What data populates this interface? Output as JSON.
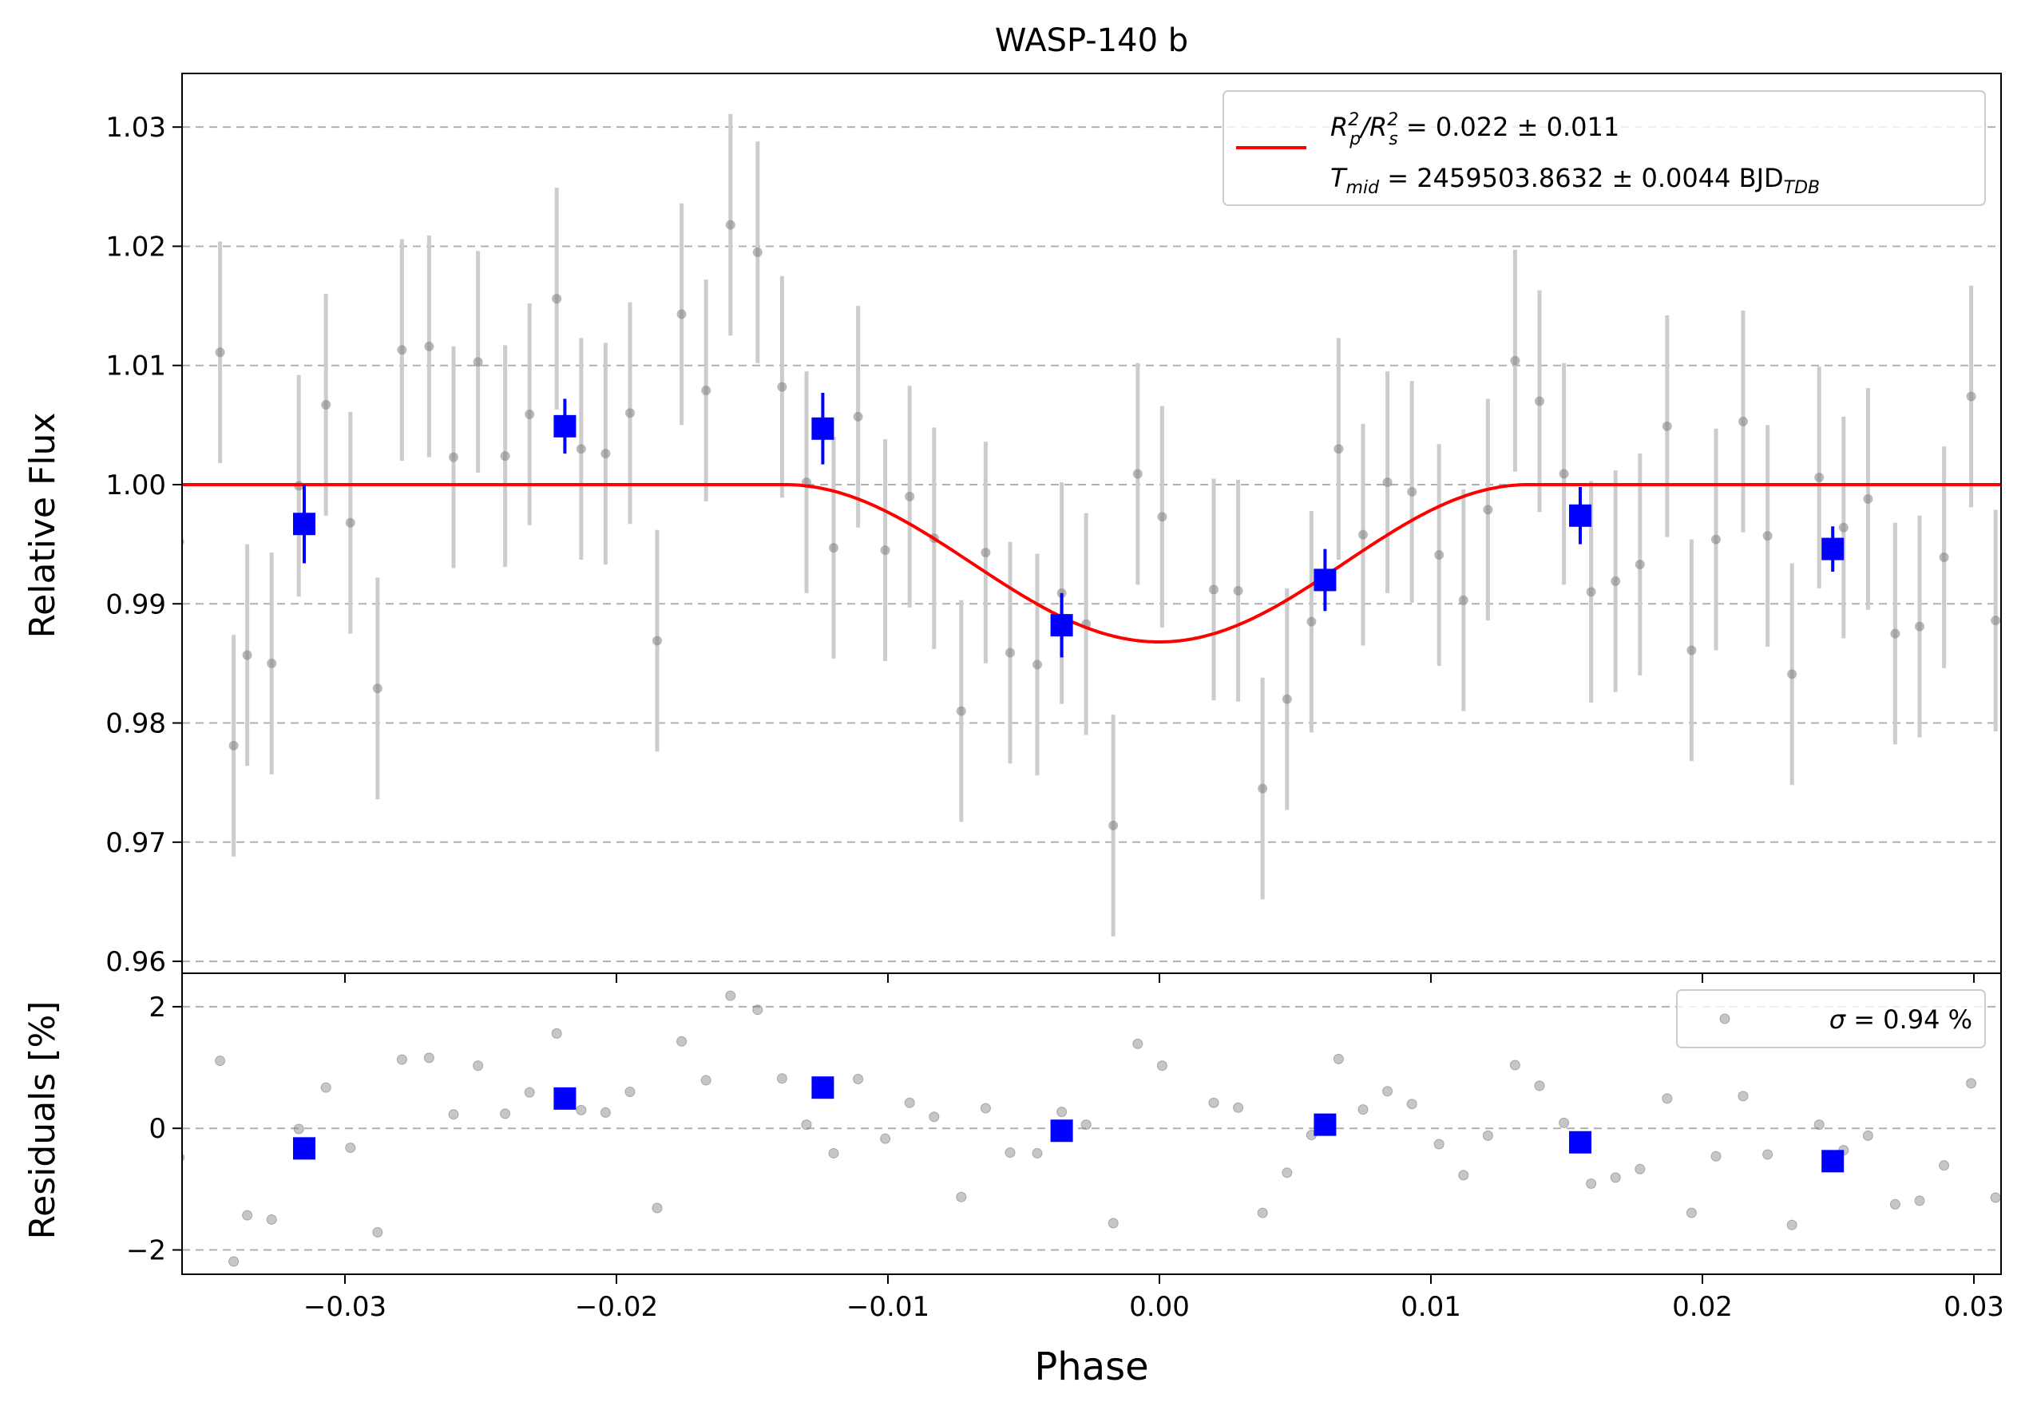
{
  "figure": {
    "title": "WASP-140 b",
    "xlabel": "Phase",
    "colors": {
      "data": "#808080",
      "errorbar": "#cccccc",
      "binned": "#0000ff",
      "model": "#ff0000",
      "grid": "#b0b0b0"
    }
  },
  "chart_data": [
    {
      "type": "scatter",
      "panel": "light-curve",
      "ylabel": "Relative Flux",
      "xlim": [
        -0.036,
        0.031
      ],
      "ylim": [
        0.959,
        1.0345
      ],
      "xticks": [
        -0.03,
        -0.02,
        -0.01,
        0.0,
        0.01,
        0.02,
        0.03
      ],
      "xtick_labels": [
        "−0.03",
        "−0.02",
        "−0.01",
        "0.00",
        "0.01",
        "0.02",
        "0.03"
      ],
      "yticks": [
        0.96,
        0.97,
        0.98,
        0.99,
        1.0,
        1.01,
        1.02,
        1.03
      ],
      "ytick_labels": [
        "0.96",
        "0.97",
        "0.98",
        "0.99",
        "1.00",
        "1.01",
        "1.02",
        "1.03"
      ],
      "grid": "horizontal dashed",
      "legend_position": "top-right",
      "legend": {
        "line1_main": "R",
        "line1_sub_a": "p",
        "line1_sup_a": "2",
        "line1_sep": "/R",
        "line1_sub_b": "s",
        "line1_sup_b": "2",
        "line1_value": " = 0.022 ± 0.011",
        "line2_main": "T",
        "line2_sub": "mid",
        "line2_value": " = 2459503.8632 ± 0.0044 BJD",
        "line2_unit_sub": "TDB"
      },
      "model": {
        "depth": 0.0132,
        "center": 0.0,
        "ingress_start": -0.0138,
        "egress_end": 0.0136
      },
      "series_raw": {
        "x": [
          -0.0361,
          -0.0346,
          -0.0341,
          -0.0336,
          -0.0327,
          -0.0317,
          -0.0307,
          -0.0298,
          -0.0288,
          -0.0279,
          -0.0269,
          -0.026,
          -0.0251,
          -0.0241,
          -0.0232,
          -0.0222,
          -0.0213,
          -0.0204,
          -0.0195,
          -0.0185,
          -0.0176,
          -0.0167,
          -0.0158,
          -0.0148,
          -0.0139,
          -0.013,
          -0.012,
          -0.0111,
          -0.0101,
          -0.0092,
          -0.0083,
          -0.0073,
          -0.0064,
          -0.0055,
          -0.0045,
          -0.0036,
          -0.0027,
          -0.0017,
          -0.0008,
          0.0001,
          0.002,
          0.0029,
          0.0038,
          0.0047,
          0.0056,
          0.0066,
          0.0075,
          0.0084,
          0.0093,
          0.0103,
          0.0112,
          0.0121,
          0.0131,
          0.014,
          0.0149,
          0.0159,
          0.0168,
          0.0177,
          0.0187,
          0.0196,
          0.0205,
          0.0215,
          0.0224,
          0.0233,
          0.0243,
          0.0252,
          0.0261,
          0.0271,
          0.028,
          0.0289,
          0.0299,
          0.0308
        ],
        "y": [
          0.9952,
          1.0111,
          0.9781,
          0.9857,
          0.985,
          0.9999,
          1.0067,
          0.9968,
          0.9829,
          1.0113,
          1.0116,
          1.0023,
          1.0103,
          1.0024,
          1.0059,
          1.0156,
          1.003,
          1.0026,
          1.006,
          0.9869,
          1.0143,
          1.0079,
          1.0218,
          1.0195,
          1.0082,
          1.0002,
          0.9947,
          1.0057,
          0.9945,
          0.999,
          0.9955,
          0.981,
          0.9943,
          0.9859,
          0.9849,
          0.9909,
          0.9883,
          0.9714,
          1.0009,
          0.9973,
          0.9912,
          0.9911,
          0.9745,
          0.982,
          0.9885,
          1.003,
          0.9958,
          1.0002,
          0.9994,
          0.9941,
          0.9903,
          0.9979,
          1.0104,
          1.007,
          1.0009,
          0.991,
          0.9919,
          0.9933,
          1.0049,
          0.9861,
          0.9954,
          1.0053,
          0.9957,
          0.9841,
          1.0006,
          0.9964,
          0.9988,
          0.9875,
          0.9881,
          0.9939,
          1.0074,
          0.9886
        ],
        "yerr": 0.0093
      },
      "series_binned": {
        "x": [
          -0.0315,
          -0.0219,
          -0.0124,
          -0.0036,
          0.0061,
          0.0155,
          0.0248
        ],
        "y": [
          0.9967,
          1.0049,
          1.0047,
          0.9882,
          0.992,
          0.9974,
          0.9946
        ],
        "yerr": [
          0.0033,
          0.0023,
          0.003,
          0.0027,
          0.0026,
          0.0024,
          0.0019
        ]
      }
    },
    {
      "type": "scatter",
      "panel": "residuals",
      "ylabel": "Residuals [%]",
      "xlim": [
        -0.036,
        0.031
      ],
      "ylim": [
        -2.4,
        2.55
      ],
      "yticks": [
        -2,
        0,
        2
      ],
      "ytick_labels": [
        "−2",
        "0",
        "2"
      ],
      "grid": "horizontal dashed",
      "legend_position": "top-right",
      "legend": {
        "sigma_symbol": "σ",
        "text": " = 0.94 %"
      },
      "series_raw": {
        "x": [
          -0.0361,
          -0.0346,
          -0.0341,
          -0.0336,
          -0.0327,
          -0.0317,
          -0.0307,
          -0.0298,
          -0.0288,
          -0.0279,
          -0.0269,
          -0.026,
          -0.0251,
          -0.0241,
          -0.0232,
          -0.0222,
          -0.0213,
          -0.0204,
          -0.0195,
          -0.0185,
          -0.0176,
          -0.0167,
          -0.0158,
          -0.0148,
          -0.0139,
          -0.013,
          -0.012,
          -0.0111,
          -0.0101,
          -0.0092,
          -0.0083,
          -0.0073,
          -0.0064,
          -0.0055,
          -0.0045,
          -0.0036,
          -0.0027,
          -0.0017,
          -0.0008,
          0.0001,
          0.002,
          0.0029,
          0.0038,
          0.0047,
          0.0056,
          0.0066,
          0.0075,
          0.0084,
          0.0093,
          0.0103,
          0.0112,
          0.0121,
          0.0131,
          0.014,
          0.0149,
          0.0159,
          0.0168,
          0.0177,
          0.0187,
          0.0196,
          0.0205,
          0.0215,
          0.0224,
          0.0233,
          0.0243,
          0.0252,
          0.0261,
          0.0271,
          0.028,
          0.0289,
          0.0299,
          0.0308
        ],
        "y": [
          -0.48,
          1.11,
          -2.19,
          -1.43,
          -1.5,
          -0.01,
          0.67,
          -0.32,
          -1.71,
          1.13,
          1.16,
          0.23,
          1.03,
          0.24,
          0.59,
          1.56,
          0.3,
          0.26,
          0.6,
          -1.31,
          1.43,
          0.79,
          2.18,
          1.95,
          0.82,
          0.06,
          -0.41,
          0.81,
          -0.17,
          0.42,
          0.19,
          -1.13,
          0.33,
          -0.4,
          -0.41,
          0.27,
          0.06,
          -1.56,
          1.39,
          1.03,
          0.42,
          0.34,
          -1.39,
          -0.73,
          -0.11,
          1.14,
          0.31,
          0.61,
          0.4,
          -0.26,
          -0.77,
          -0.12,
          1.04,
          0.7,
          0.09,
          -0.91,
          -0.81,
          -0.67,
          0.49,
          -1.39,
          -0.46,
          0.53,
          -0.43,
          -1.59,
          0.06,
          -0.36,
          -0.12,
          -1.25,
          -1.19,
          -0.61,
          0.74,
          -1.14
        ]
      },
      "series_binned": {
        "x": [
          -0.0315,
          -0.0219,
          -0.0124,
          -0.0036,
          0.0061,
          0.0155,
          0.0248
        ],
        "y": [
          -0.33,
          0.49,
          0.67,
          -0.04,
          0.06,
          -0.23,
          -0.54
        ]
      }
    }
  ]
}
